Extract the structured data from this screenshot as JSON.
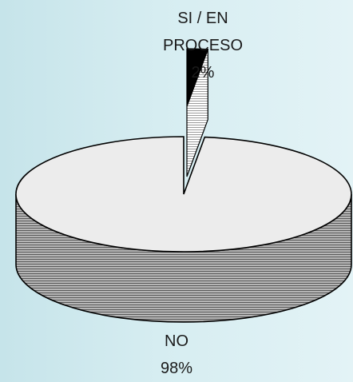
{
  "chart_data": {
    "type": "pie",
    "style": "3d-exploded",
    "legend": "none",
    "slices": [
      {
        "label_lines": [
          "SI / EN",
          "PROCESO"
        ],
        "value": 2,
        "percent_label": "2%",
        "color": "#000000",
        "exploded": true
      },
      {
        "label_lines": [
          "NO"
        ],
        "value": 98,
        "percent_label": "98%",
        "color": "#ececec",
        "side_color": "#8f8f8f",
        "exploded": false
      }
    ]
  }
}
